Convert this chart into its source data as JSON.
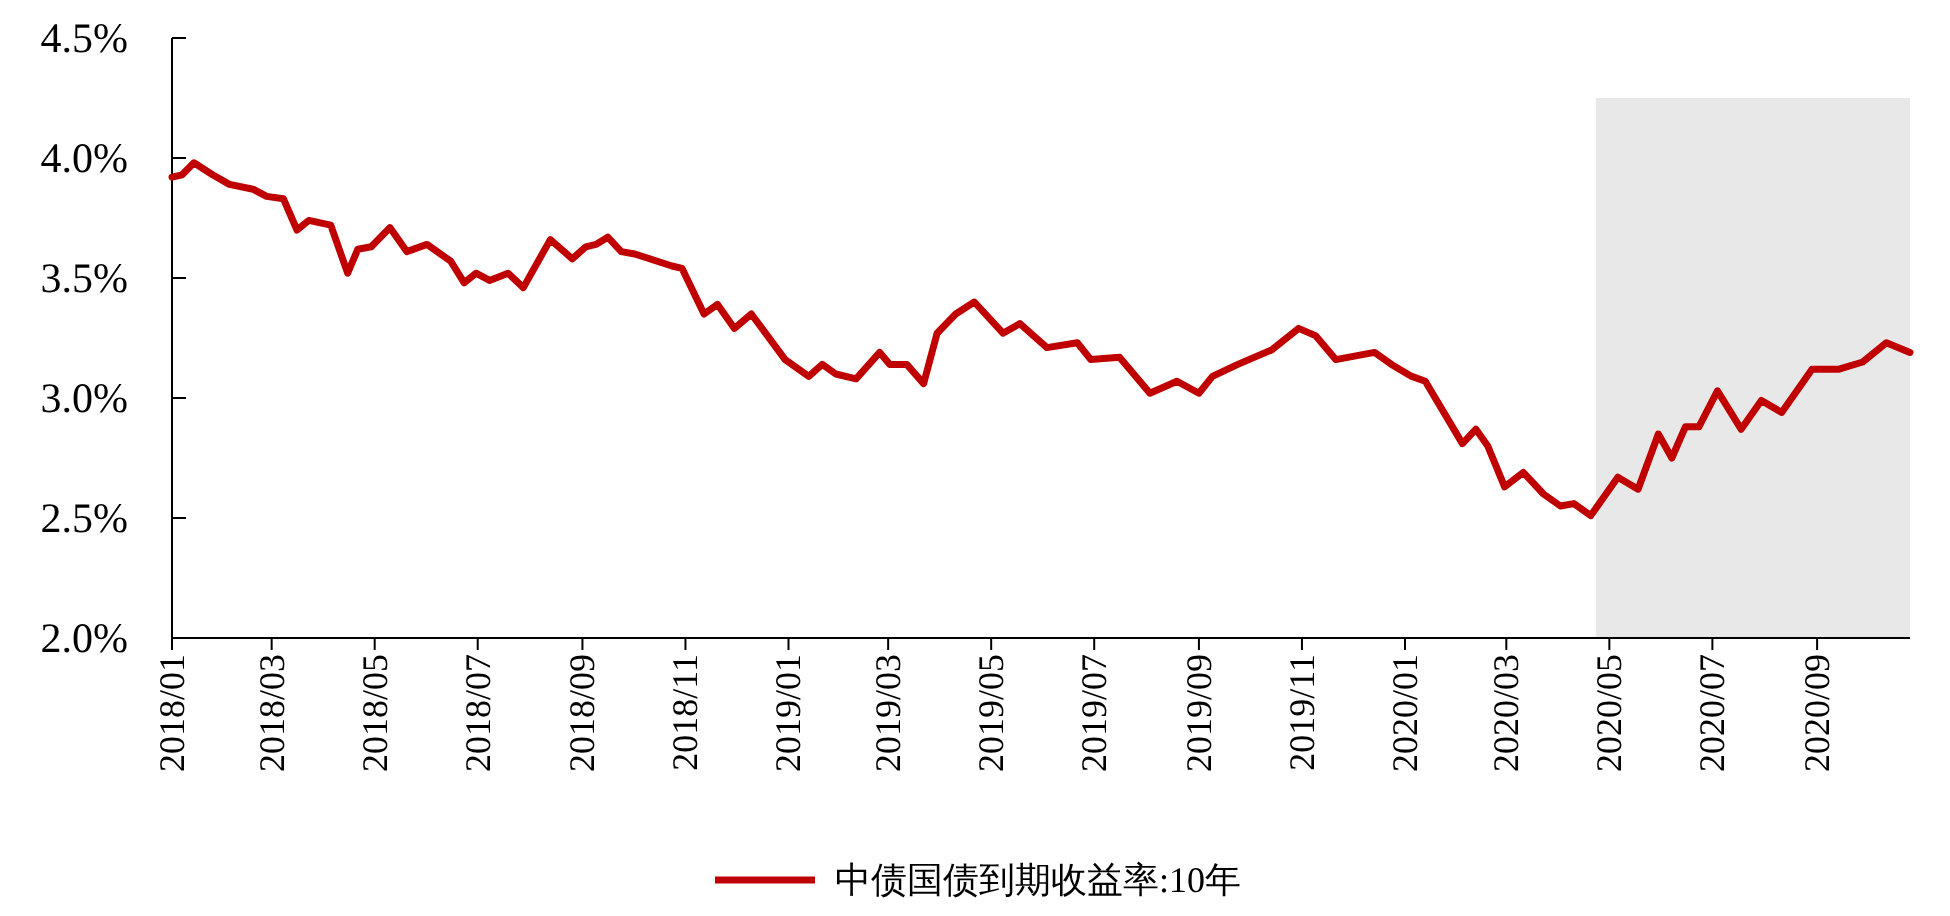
{
  "chart_data": {
    "type": "line",
    "x": [
      "2018-01-01",
      "2018-01-07",
      "2018-01-14",
      "2018-01-25",
      "2018-02-04",
      "2018-02-18",
      "2018-02-26",
      "2018-03-08",
      "2018-03-16",
      "2018-03-23",
      "2018-04-05",
      "2018-04-15",
      "2018-04-21",
      "2018-04-29",
      "2018-05-10",
      "2018-05-20",
      "2018-06-01",
      "2018-06-15",
      "2018-06-23",
      "2018-06-30",
      "2018-07-08",
      "2018-07-19",
      "2018-07-28",
      "2018-08-13",
      "2018-08-26",
      "2018-09-03",
      "2018-09-09",
      "2018-09-16",
      "2018-09-24",
      "2018-10-02",
      "2018-10-24",
      "2018-10-30",
      "2018-11-12",
      "2018-11-20",
      "2018-11-30",
      "2018-12-10",
      "2018-12-30",
      "2019-01-13",
      "2019-01-21",
      "2019-01-29",
      "2019-02-10",
      "2019-02-24",
      "2019-03-02",
      "2019-03-12",
      "2019-03-22",
      "2019-03-30",
      "2019-04-10",
      "2019-04-21",
      "2019-05-08",
      "2019-05-18",
      "2019-06-03",
      "2019-06-21",
      "2019-06-29",
      "2019-07-16",
      "2019-08-03",
      "2019-08-19",
      "2019-09-01",
      "2019-09-09",
      "2019-09-24",
      "2019-10-14",
      "2019-10-30",
      "2019-11-09",
      "2019-11-21",
      "2019-12-14",
      "2019-12-24",
      "2020-01-05",
      "2020-01-13",
      "2020-02-04",
      "2020-02-12",
      "2020-02-19",
      "2020-02-29",
      "2020-03-11",
      "2020-03-23",
      "2020-04-02",
      "2020-04-10",
      "2020-04-20",
      "2020-05-06",
      "2020-05-18",
      "2020-05-30",
      "2020-06-07",
      "2020-06-15",
      "2020-06-23",
      "2020-07-04",
      "2020-07-18",
      "2020-07-30",
      "2020-08-11",
      "2020-08-29",
      "2020-09-14",
      "2020-09-28",
      "2020-10-12",
      "2020-10-26"
    ],
    "series": [
      {
        "name": "中债国债到期收益率:10年",
        "color": "#c00000",
        "values": [
          3.92,
          3.93,
          3.98,
          3.93,
          3.89,
          3.87,
          3.84,
          3.83,
          3.7,
          3.74,
          3.72,
          3.52,
          3.62,
          3.63,
          3.71,
          3.61,
          3.64,
          3.57,
          3.48,
          3.52,
          3.49,
          3.52,
          3.46,
          3.66,
          3.58,
          3.63,
          3.64,
          3.67,
          3.61,
          3.6,
          3.55,
          3.54,
          3.35,
          3.39,
          3.29,
          3.35,
          3.16,
          3.09,
          3.14,
          3.1,
          3.08,
          3.19,
          3.14,
          3.14,
          3.06,
          3.27,
          3.35,
          3.4,
          3.27,
          3.31,
          3.21,
          3.23,
          3.16,
          3.17,
          3.02,
          3.07,
          3.02,
          3.09,
          3.14,
          3.2,
          3.29,
          3.26,
          3.16,
          3.19,
          3.14,
          3.09,
          3.07,
          2.81,
          2.87,
          2.8,
          2.63,
          2.69,
          2.6,
          2.55,
          2.56,
          2.51,
          2.67,
          2.62,
          2.85,
          2.75,
          2.88,
          2.88,
          3.03,
          2.87,
          2.99,
          2.94,
          3.12,
          3.12,
          3.15,
          3.23,
          3.19
        ]
      }
    ],
    "xlim": [
      "2018-01-01",
      "2020-10-26"
    ],
    "ylim": [
      2.0,
      4.5
    ],
    "xticks": [
      {
        "value": "2018-01-01",
        "label": "2018/01"
      },
      {
        "value": "2018-03-01",
        "label": "2018/03"
      },
      {
        "value": "2018-05-01",
        "label": "2018/05"
      },
      {
        "value": "2018-07-01",
        "label": "2018/07"
      },
      {
        "value": "2018-09-01",
        "label": "2018/09"
      },
      {
        "value": "2018-11-01",
        "label": "2018/11"
      },
      {
        "value": "2019-01-01",
        "label": "2019/01"
      },
      {
        "value": "2019-03-01",
        "label": "2019/03"
      },
      {
        "value": "2019-05-01",
        "label": "2019/05"
      },
      {
        "value": "2019-07-01",
        "label": "2019/07"
      },
      {
        "value": "2019-09-01",
        "label": "2019/09"
      },
      {
        "value": "2019-11-01",
        "label": "2019/11"
      },
      {
        "value": "2020-01-01",
        "label": "2020/01"
      },
      {
        "value": "2020-03-01",
        "label": "2020/03"
      },
      {
        "value": "2020-05-01",
        "label": "2020/05"
      },
      {
        "value": "2020-07-01",
        "label": "2020/07"
      },
      {
        "value": "2020-09-01",
        "label": "2020/09"
      }
    ],
    "yticks": [
      {
        "value": 2.0,
        "label": "2.0%"
      },
      {
        "value": 2.5,
        "label": "2.5%"
      },
      {
        "value": 3.0,
        "label": "3.0%"
      },
      {
        "value": 3.5,
        "label": "3.5%"
      },
      {
        "value": 4.0,
        "label": "4.0%"
      },
      {
        "value": 4.5,
        "label": "4.5%"
      }
    ],
    "bands": [
      {
        "axis": "x",
        "from": "2020-04-23",
        "to": "2020-10-26",
        "color": "#e8e8e8"
      }
    ],
    "legend": "bottom"
  }
}
